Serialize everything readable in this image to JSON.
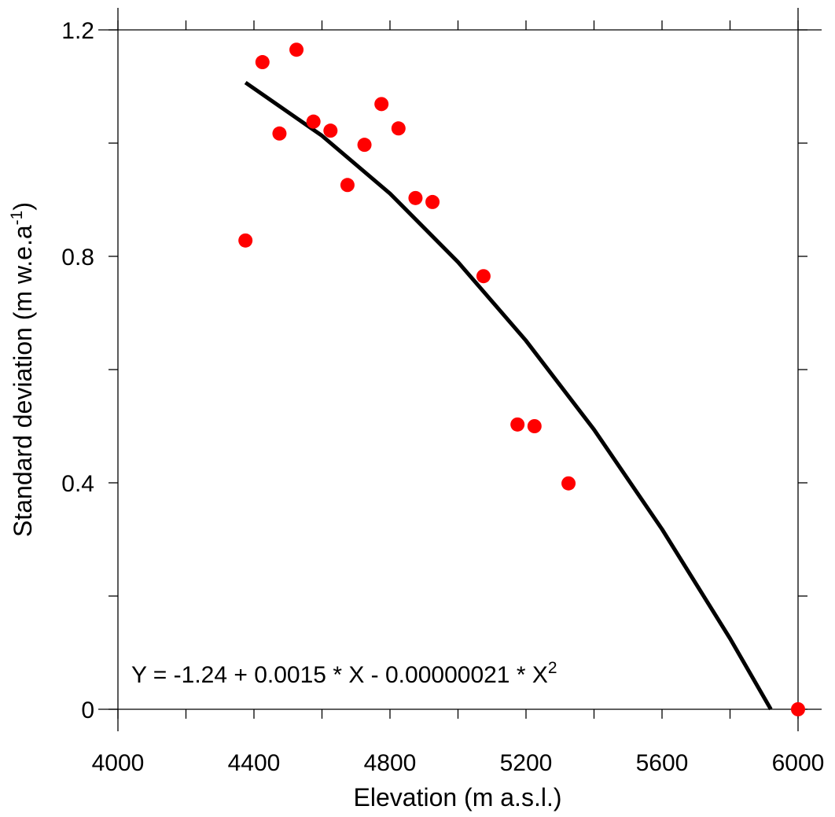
{
  "chart_data": {
    "type": "scatter",
    "xlabel": "Elevation (m a.s.l.)",
    "ylabel_main": "Standard deviation (m w.e.a",
    "ylabel_sup": "-1",
    "ylabel_end": ")",
    "xlim": [
      4000,
      6000
    ],
    "ylim": [
      0,
      1.2
    ],
    "x_ticks": [
      4000,
      4400,
      4800,
      5200,
      5600,
      6000
    ],
    "x_tick_labels": [
      "4000",
      "4400",
      "4800",
      "5200",
      "5600",
      "6000"
    ],
    "x_minor_step": 200,
    "y_ticks": [
      0,
      0.4,
      0.8,
      1.2
    ],
    "y_tick_labels": [
      "0",
      "0.4",
      "0.8",
      "1.2"
    ],
    "y_minor_step": 0.2,
    "grid": false,
    "point_color": "#ff0000",
    "line_color": "#000000",
    "points": [
      {
        "x": 4375,
        "y": 0.828
      },
      {
        "x": 4425,
        "y": 1.143
      },
      {
        "x": 4475,
        "y": 1.017
      },
      {
        "x": 4525,
        "y": 1.165
      },
      {
        "x": 4575,
        "y": 1.038
      },
      {
        "x": 4625,
        "y": 1.022
      },
      {
        "x": 4675,
        "y": 0.926
      },
      {
        "x": 4725,
        "y": 0.997
      },
      {
        "x": 4775,
        "y": 1.069
      },
      {
        "x": 4825,
        "y": 1.026
      },
      {
        "x": 4875,
        "y": 0.903
      },
      {
        "x": 4925,
        "y": 0.896
      },
      {
        "x": 5075,
        "y": 0.765
      },
      {
        "x": 5175,
        "y": 0.503
      },
      {
        "x": 5225,
        "y": 0.5
      },
      {
        "x": 5325,
        "y": 0.399
      },
      {
        "x": 6000,
        "y": 0.0
      }
    ],
    "fit_curve": [
      {
        "x": 4375,
        "y": 1.107
      },
      {
        "x": 4600,
        "y": 1.013
      },
      {
        "x": 4800,
        "y": 0.911
      },
      {
        "x": 5000,
        "y": 0.79
      },
      {
        "x": 5200,
        "y": 0.651
      },
      {
        "x": 5400,
        "y": 0.494
      },
      {
        "x": 5600,
        "y": 0.318
      },
      {
        "x": 5800,
        "y": 0.125
      },
      {
        "x": 5920,
        "y": 0.0
      }
    ],
    "equation_main": "Y = -1.24 + 0.0015 * X - 0.00000021 * X",
    "equation_sup": "2"
  }
}
